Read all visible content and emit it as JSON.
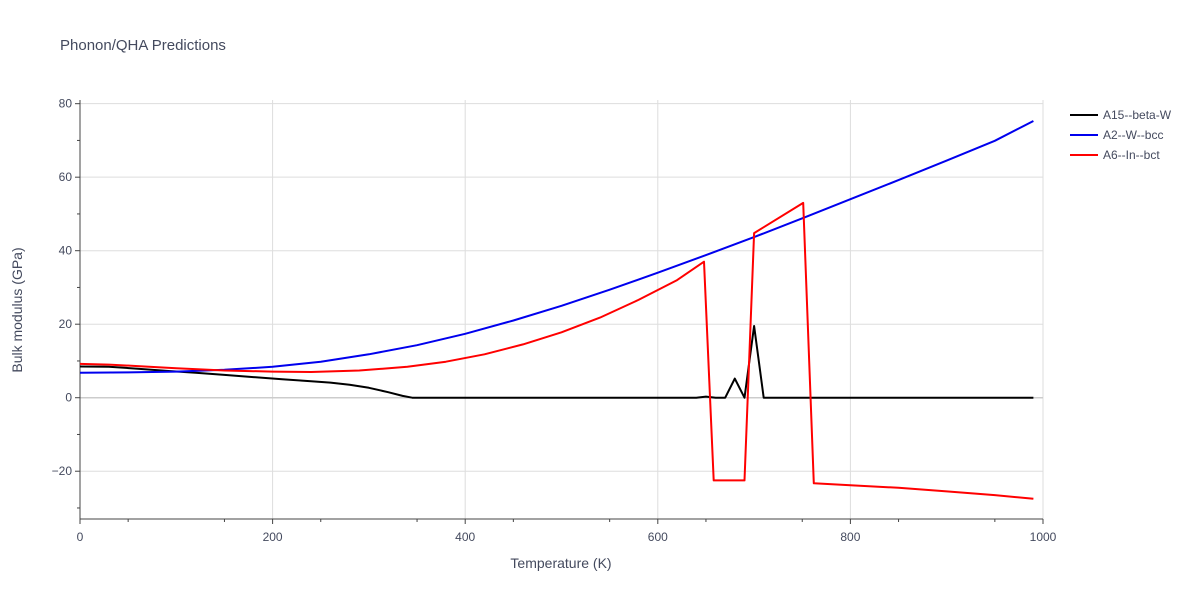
{
  "chart_data": {
    "type": "line",
    "title": "Phonon/QHA Predictions",
    "xlabel": "Temperature (K)",
    "ylabel": "Bulk modulus (GPa)",
    "xlim": [
      0,
      1000
    ],
    "ylim": [
      -33,
      81
    ],
    "x_ticks": [
      0,
      200,
      400,
      600,
      800,
      1000
    ],
    "y_ticks": [
      -20,
      0,
      20,
      40,
      60,
      80
    ],
    "x_tick_labels": [
      "0",
      "200",
      "400",
      "600",
      "800",
      "1000"
    ],
    "y_tick_labels": [
      "−20",
      "0",
      "20",
      "40",
      "60",
      "80"
    ],
    "grid": true,
    "legend_position": "top-right",
    "series": [
      {
        "name": "A15--beta-W",
        "color": "#000000",
        "points": [
          [
            0,
            8.5
          ],
          [
            30,
            8.4
          ],
          [
            60,
            7.9
          ],
          [
            90,
            7.3
          ],
          [
            120,
            6.8
          ],
          [
            150,
            6.2
          ],
          [
            180,
            5.6
          ],
          [
            210,
            5.0
          ],
          [
            240,
            4.5
          ],
          [
            260,
            4.1
          ],
          [
            280,
            3.5
          ],
          [
            300,
            2.7
          ],
          [
            320,
            1.5
          ],
          [
            335,
            0.5
          ],
          [
            345,
            0.0
          ],
          [
            400,
            0.0
          ],
          [
            500,
            0.0
          ],
          [
            600,
            0.0
          ],
          [
            640,
            0.0
          ],
          [
            650,
            0.3
          ],
          [
            660,
            0.0
          ],
          [
            670,
            0.0
          ],
          [
            680,
            5.2
          ],
          [
            690,
            0.0
          ],
          [
            700,
            19.5
          ],
          [
            710,
            0.0
          ],
          [
            800,
            0.0
          ],
          [
            900,
            0.0
          ],
          [
            990,
            0.0
          ]
        ]
      },
      {
        "name": "A2--W--bcc",
        "color": "#0000ee",
        "points": [
          [
            0,
            6.8
          ],
          [
            50,
            6.9
          ],
          [
            100,
            7.1
          ],
          [
            150,
            7.6
          ],
          [
            200,
            8.4
          ],
          [
            250,
            9.8
          ],
          [
            300,
            11.8
          ],
          [
            350,
            14.3
          ],
          [
            400,
            17.4
          ],
          [
            450,
            21.0
          ],
          [
            500,
            25.0
          ],
          [
            550,
            29.4
          ],
          [
            600,
            34.0
          ],
          [
            650,
            38.8
          ],
          [
            700,
            43.7
          ],
          [
            750,
            48.8
          ],
          [
            800,
            54.0
          ],
          [
            850,
            59.2
          ],
          [
            900,
            64.5
          ],
          [
            950,
            69.9
          ],
          [
            990,
            75.3
          ]
        ]
      },
      {
        "name": "A6--In--bct",
        "color": "#ff0000",
        "points": [
          [
            0,
            9.2
          ],
          [
            30,
            9.0
          ],
          [
            60,
            8.6
          ],
          [
            100,
            8.0
          ],
          [
            150,
            7.4
          ],
          [
            200,
            7.1
          ],
          [
            240,
            7.0
          ],
          [
            290,
            7.4
          ],
          [
            340,
            8.4
          ],
          [
            380,
            9.8
          ],
          [
            420,
            11.8
          ],
          [
            460,
            14.5
          ],
          [
            500,
            17.8
          ],
          [
            540,
            21.8
          ],
          [
            580,
            26.6
          ],
          [
            620,
            32.0
          ],
          [
            648,
            37.0
          ],
          [
            658,
            -22.5
          ],
          [
            690,
            -22.5
          ],
          [
            700,
            44.8
          ],
          [
            751,
            53.0
          ],
          [
            762,
            -23.3
          ],
          [
            800,
            -23.8
          ],
          [
            850,
            -24.5
          ],
          [
            900,
            -25.5
          ],
          [
            950,
            -26.5
          ],
          [
            990,
            -27.5
          ]
        ]
      }
    ]
  }
}
